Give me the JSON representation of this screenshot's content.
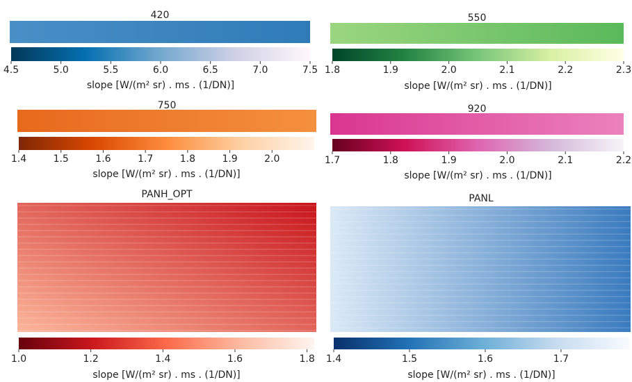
{
  "chart_data": [
    {
      "type": "heatmap",
      "title": "420",
      "colormap": [
        "#023858",
        "#0570b0",
        "#74a9cf",
        "#d0d1e6",
        "#fff7fb"
      ],
      "image_colors": [
        "#4a8fc6",
        "#2f7bb8"
      ],
      "clim": [
        4.5,
        7.5
      ],
      "cticks": [
        4.5,
        {
          "value": 5,
          "label": "5.0"
        },
        5.5,
        {
          "value": 6,
          "label": "6.0"
        },
        6.5,
        {
          "value": 7,
          "label": "7.0"
        },
        7.5
      ],
      "colorbar_label": "slope [W/(m² sr) . ms . (1/DN)]"
    },
    {
      "type": "heatmap",
      "title": "550",
      "colormap": [
        "#004529",
        "#238443",
        "#78c679",
        "#d9f0a3",
        "#ffffe5"
      ],
      "image_colors": [
        "#9bd680",
        "#5ab95a"
      ],
      "clim": [
        1.8,
        2.3
      ],
      "cticks": [
        1.8,
        1.9,
        {
          "value": 2,
          "label": "2.0"
        },
        2.1,
        2.2,
        2.3
      ],
      "colorbar_label": "slope [W/(m² sr) . ms . (1/DN)]"
    },
    {
      "type": "heatmap",
      "title": "750",
      "colormap": [
        "#7f2704",
        "#d94801",
        "#fd8d3c",
        "#fdd0a2",
        "#fff5eb"
      ],
      "image_colors": [
        "#e8691c",
        "#f4903f"
      ],
      "clim": [
        1.4,
        2.1
      ],
      "cticks": [
        1.4,
        1.5,
        1.6,
        1.7,
        1.8,
        1.9,
        {
          "value": 2,
          "label": "2.0"
        }
      ],
      "colorbar_label": "slope [W/(m² sr) . ms . (1/DN)]"
    },
    {
      "type": "heatmap",
      "title": "920",
      "colormap": [
        "#67001f",
        "#ce1256",
        "#df65b0",
        "#d4b9da",
        "#f7f4f9"
      ],
      "image_colors": [
        "#d9368f",
        "#eb82bd"
      ],
      "clim": [
        1.7,
        2.2
      ],
      "cticks": [
        1.7,
        1.8,
        1.9,
        {
          "value": 2,
          "label": "2.0"
        },
        2.1,
        2.2
      ],
      "colorbar_label": "slope [W/(m² sr) . ms . (1/DN)]"
    },
    {
      "type": "heatmap",
      "title": "PANH_OPT",
      "colormap": [
        "#67000d",
        "#cb181d",
        "#fb6a4a",
        "#fcbba1",
        "#fff5f0"
      ],
      "image_colors": [
        "#fcb59a",
        "#c8141b"
      ],
      "clim": [
        1.0,
        1.82
      ],
      "cticks": [
        {
          "value": 1,
          "label": "1.0"
        },
        1.2,
        1.4,
        1.6,
        1.8
      ],
      "colorbar_label": "slope [W/(m² sr) . ms . (1/DN)]"
    },
    {
      "type": "heatmap",
      "title": "PANL",
      "colormap": [
        "#08306b",
        "#2171b5",
        "#6baed6",
        "#c6dbef",
        "#f7fbff"
      ],
      "image_colors": [
        "#dbe9f6",
        "#3a7bbf"
      ],
      "clim": [
        1.4,
        1.79
      ],
      "cticks": [
        1.4,
        1.5,
        1.6,
        1.7
      ],
      "colorbar_label": "slope [W/(m² sr) . ms . (1/DN)]"
    }
  ]
}
